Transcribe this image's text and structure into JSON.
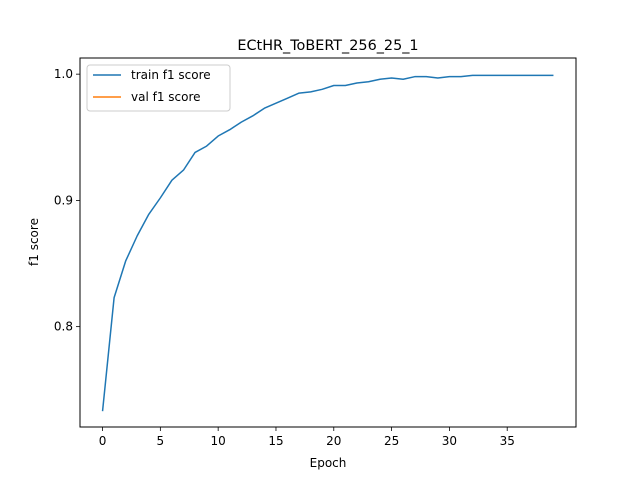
{
  "chart_data": {
    "type": "line",
    "title": "ECtHR_ToBERT_256_25_1",
    "xlabel": "Epoch",
    "ylabel": "f1 score",
    "xlim": [
      -1.95,
      40.95
    ],
    "ylim": [
      0.7205,
      1.0128
    ],
    "xticks": [
      0,
      5,
      10,
      15,
      20,
      25,
      30,
      35
    ],
    "yticks": [
      0.8,
      0.9,
      1.0
    ],
    "ytick_labels": [
      "0.8",
      "0.9",
      "1.0"
    ],
    "grid": false,
    "legend_position": "upper left",
    "series": [
      {
        "name": "train f1 score",
        "color": "#1f77b4",
        "x": [
          0,
          1,
          2,
          3,
          4,
          5,
          6,
          7,
          8,
          9,
          10,
          11,
          12,
          13,
          14,
          15,
          16,
          17,
          18,
          19,
          20,
          21,
          22,
          23,
          24,
          25,
          26,
          27,
          28,
          29,
          30,
          31,
          32,
          33,
          34,
          35,
          36,
          37,
          38,
          39
        ],
        "y": [
          0.733,
          0.823,
          0.852,
          0.872,
          0.889,
          0.902,
          0.916,
          0.924,
          0.938,
          0.943,
          0.951,
          0.956,
          0.962,
          0.967,
          0.973,
          0.977,
          0.981,
          0.985,
          0.986,
          0.988,
          0.991,
          0.991,
          0.993,
          0.994,
          0.996,
          0.997,
          0.996,
          0.998,
          0.998,
          0.997,
          0.998,
          0.998,
          0.999,
          0.999,
          0.999,
          0.999,
          0.999,
          0.999,
          0.999,
          0.999
        ]
      },
      {
        "name": "val f1 score",
        "color": "#ff7f0e",
        "x": [],
        "y": []
      }
    ]
  }
}
